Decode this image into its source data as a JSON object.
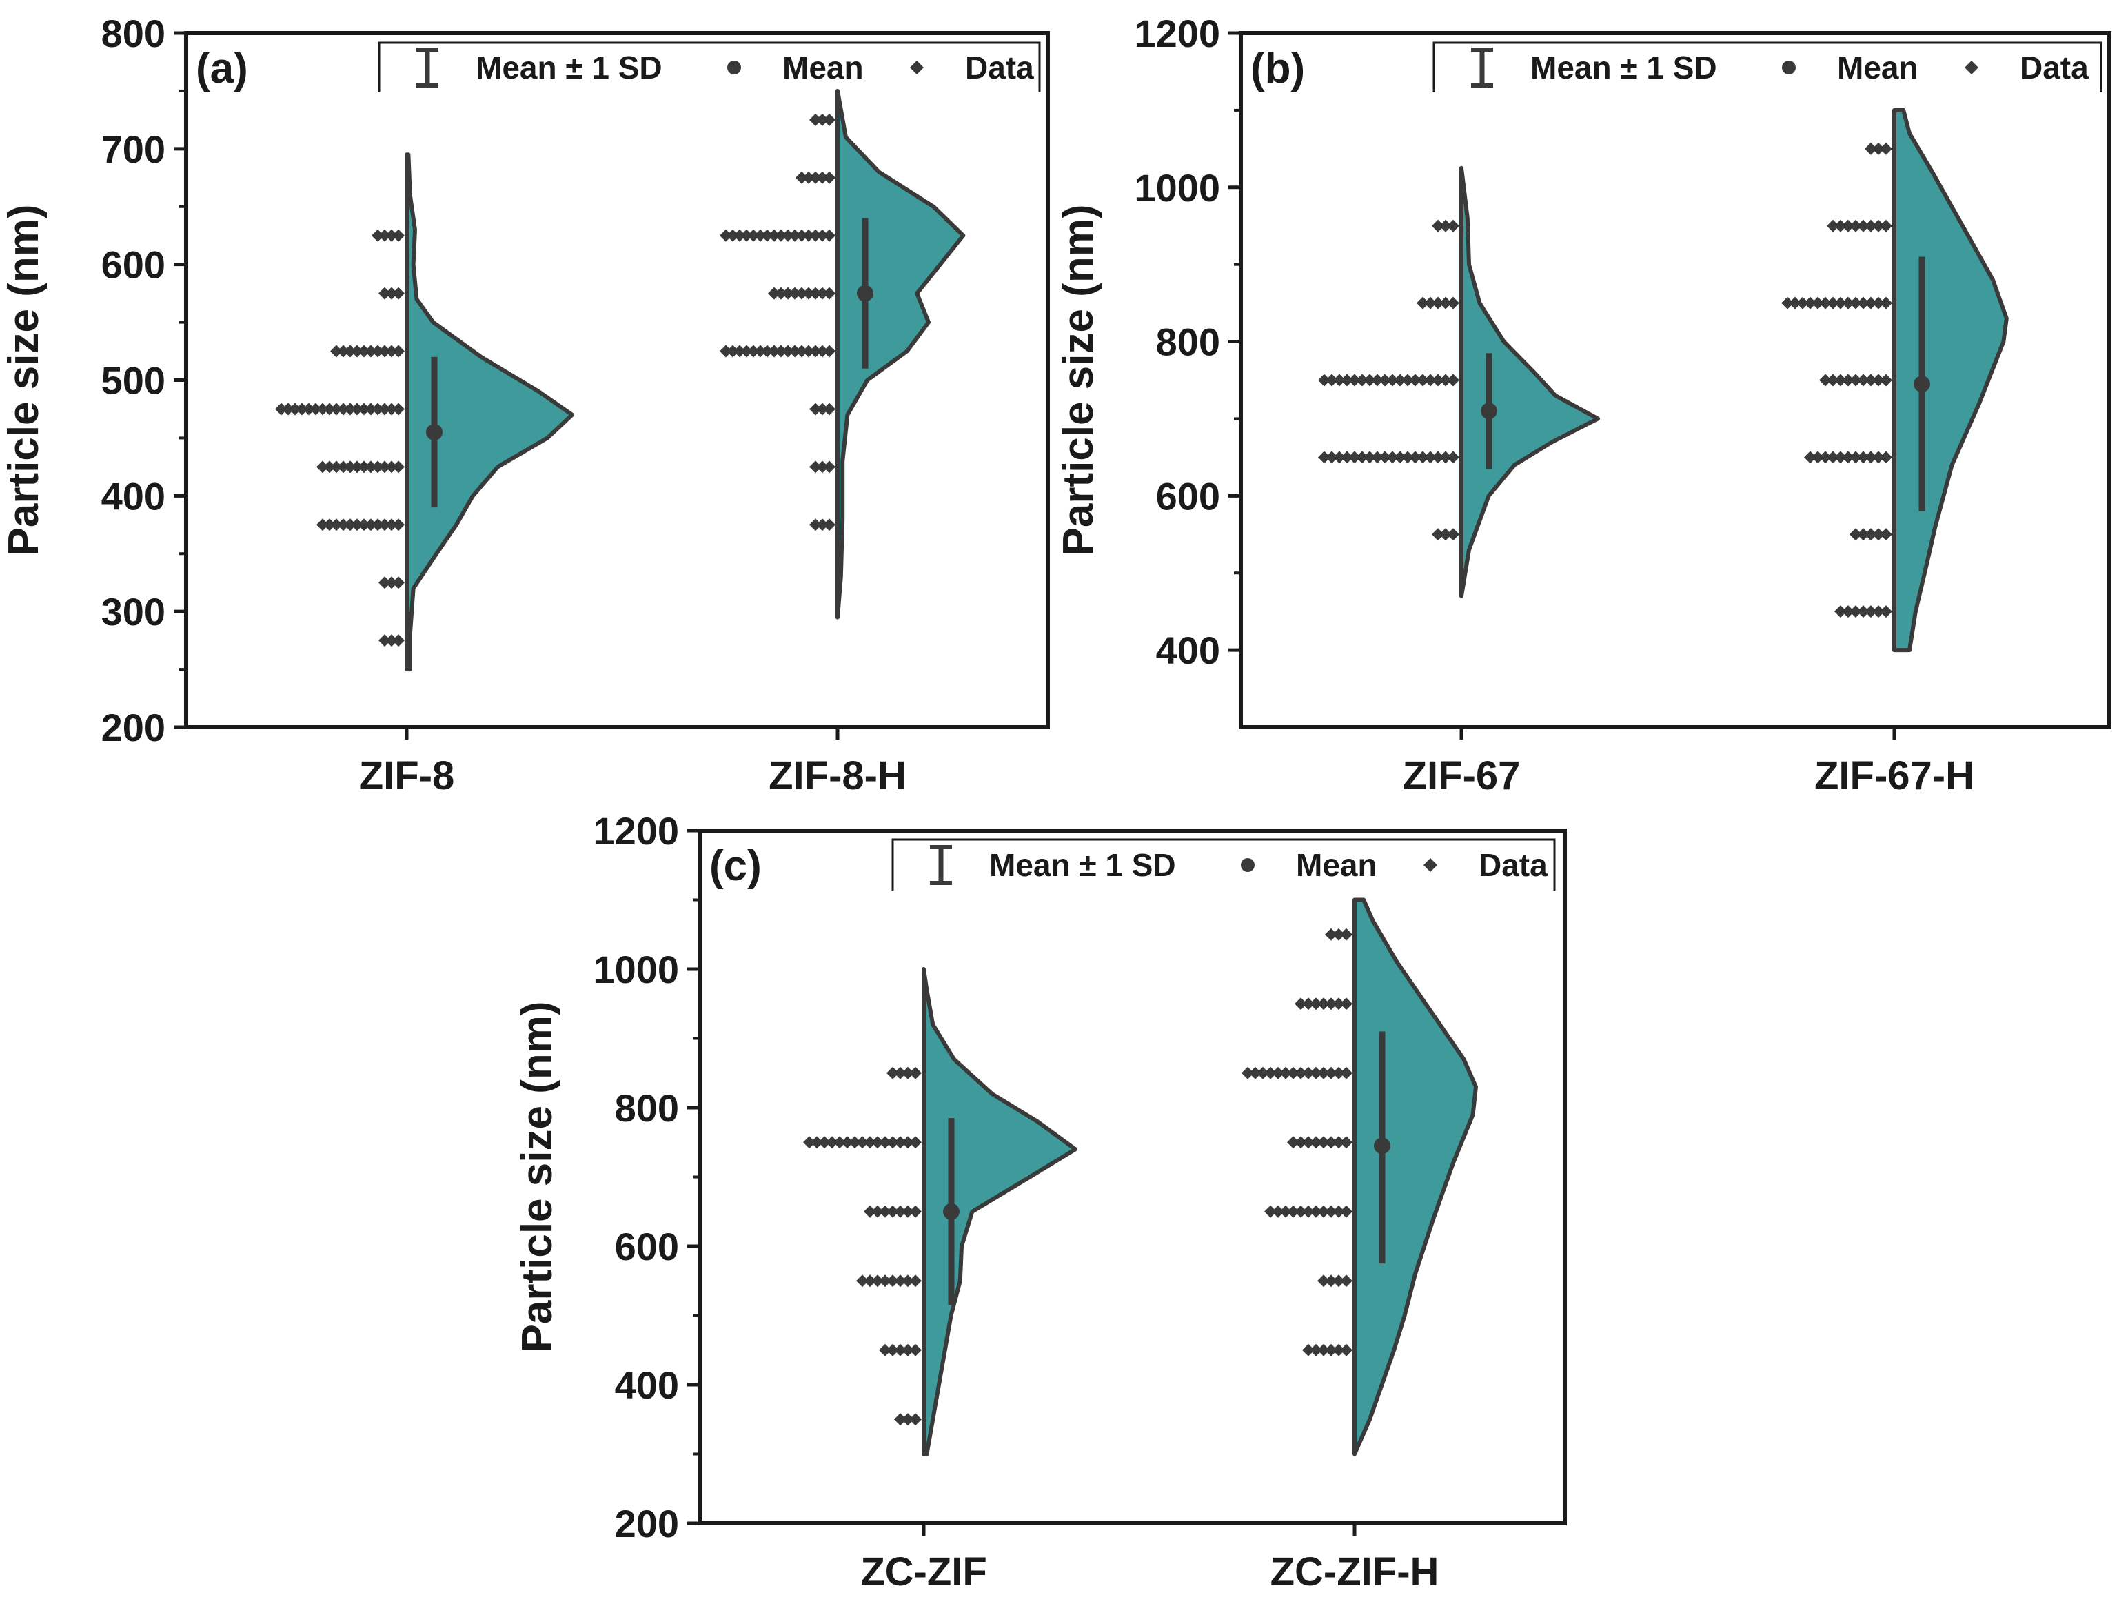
{
  "colors": {
    "violin_fill": "#3f9b9b",
    "violin_stroke": "#3a3a3a",
    "data_marker": "#3a3a3a",
    "axis": "#1a1a1a"
  },
  "legend": {
    "sd_label": "Mean ± 1 SD",
    "mean_label": "Mean",
    "data_label": "Data",
    "placement": "top-right"
  },
  "chart_data": [
    {
      "type": "violin",
      "panel_label": "(a)",
      "ylabel": "Particle size (nm)",
      "xlabel": "",
      "ylim": [
        200,
        800
      ],
      "yticks": [
        "200",
        "300",
        "400",
        "500",
        "600",
        "700",
        "800"
      ],
      "grid": false,
      "categories": [
        "ZIF-8",
        "ZIF-8-H"
      ],
      "series": [
        {
          "category": "ZIF-8",
          "mean": 455,
          "sd_low": 390,
          "sd_high": 520,
          "range": [
            250,
            695
          ],
          "density": [
            [
              250,
              0.02
            ],
            [
              280,
              0.02
            ],
            [
              320,
              0.04
            ],
            [
              350,
              0.18
            ],
            [
              375,
              0.3
            ],
            [
              400,
              0.4
            ],
            [
              425,
              0.55
            ],
            [
              450,
              0.85
            ],
            [
              470,
              1.0
            ],
            [
              490,
              0.8
            ],
            [
              520,
              0.45
            ],
            [
              550,
              0.16
            ],
            [
              570,
              0.06
            ],
            [
              600,
              0.04
            ],
            [
              630,
              0.05
            ],
            [
              660,
              0.02
            ],
            [
              695,
              0.01
            ]
          ],
          "data_bins": [
            [
              275,
              3
            ],
            [
              325,
              3
            ],
            [
              375,
              12
            ],
            [
              425,
              12
            ],
            [
              475,
              18
            ],
            [
              525,
              10
            ],
            [
              575,
              3
            ],
            [
              625,
              4
            ]
          ]
        },
        {
          "category": "ZIF-8-H",
          "mean": 575,
          "sd_low": 510,
          "sd_high": 640,
          "range": [
            295,
            750
          ],
          "density": [
            [
              295,
              0.0
            ],
            [
              330,
              0.02
            ],
            [
              380,
              0.03
            ],
            [
              430,
              0.03
            ],
            [
              470,
              0.06
            ],
            [
              500,
              0.18
            ],
            [
              525,
              0.42
            ],
            [
              550,
              0.55
            ],
            [
              575,
              0.48
            ],
            [
              600,
              0.62
            ],
            [
              625,
              0.76
            ],
            [
              650,
              0.58
            ],
            [
              680,
              0.25
            ],
            [
              710,
              0.05
            ],
            [
              750,
              0.0
            ]
          ],
          "data_bins": [
            [
              375,
              3
            ],
            [
              425,
              3
            ],
            [
              475,
              3
            ],
            [
              525,
              16
            ],
            [
              575,
              9
            ],
            [
              625,
              16
            ],
            [
              675,
              5
            ],
            [
              725,
              3
            ]
          ]
        }
      ]
    },
    {
      "type": "violin",
      "panel_label": "(b)",
      "ylabel": "Particle size (nm)",
      "xlabel": "",
      "ylim": [
        300,
        1200
      ],
      "yticks": [
        "400",
        "600",
        "800",
        "1000",
        "1200"
      ],
      "grid": false,
      "categories": [
        "ZIF-67",
        "ZIF-67-H"
      ],
      "series": [
        {
          "category": "ZIF-67",
          "mean": 710,
          "sd_low": 635,
          "sd_high": 785,
          "range": [
            470,
            1025
          ],
          "density": [
            [
              470,
              0.0
            ],
            [
              530,
              0.05
            ],
            [
              600,
              0.18
            ],
            [
              640,
              0.35
            ],
            [
              670,
              0.6
            ],
            [
              700,
              0.9
            ],
            [
              730,
              0.62
            ],
            [
              760,
              0.48
            ],
            [
              800,
              0.28
            ],
            [
              850,
              0.12
            ],
            [
              900,
              0.05
            ],
            [
              960,
              0.04
            ],
            [
              1025,
              0.0
            ]
          ],
          "data_bins": [
            [
              550,
              3
            ],
            [
              650,
              18
            ],
            [
              750,
              18
            ],
            [
              850,
              5
            ],
            [
              950,
              3
            ]
          ]
        },
        {
          "category": "ZIF-67-H",
          "mean": 745,
          "sd_low": 580,
          "sd_high": 910,
          "range": [
            400,
            1100
          ],
          "density": [
            [
              400,
              0.1
            ],
            [
              450,
              0.14
            ],
            [
              500,
              0.2
            ],
            [
              560,
              0.27
            ],
            [
              640,
              0.38
            ],
            [
              720,
              0.56
            ],
            [
              800,
              0.72
            ],
            [
              830,
              0.74
            ],
            [
              880,
              0.65
            ],
            [
              950,
              0.45
            ],
            [
              1020,
              0.25
            ],
            [
              1070,
              0.1
            ],
            [
              1100,
              0.06
            ]
          ],
          "data_bins": [
            [
              450,
              7
            ],
            [
              550,
              5
            ],
            [
              650,
              11
            ],
            [
              750,
              9
            ],
            [
              850,
              14
            ],
            [
              950,
              8
            ],
            [
              1050,
              3
            ]
          ]
        }
      ]
    },
    {
      "type": "violin",
      "panel_label": "(c)",
      "ylabel": "Particle size (nm)",
      "xlabel": "",
      "ylim": [
        200,
        1200
      ],
      "yticks": [
        "200",
        "400",
        "600",
        "800",
        "1000",
        "1200"
      ],
      "grid": false,
      "categories": [
        "ZC-ZIF",
        "ZC-ZIF-H"
      ],
      "series": [
        {
          "category": "ZC-ZIF",
          "mean": 650,
          "sd_low": 515,
          "sd_high": 785,
          "range": [
            300,
            1000
          ],
          "density": [
            [
              300,
              0.02
            ],
            [
              350,
              0.06
            ],
            [
              400,
              0.1
            ],
            [
              450,
              0.14
            ],
            [
              500,
              0.18
            ],
            [
              550,
              0.24
            ],
            [
              600,
              0.25
            ],
            [
              650,
              0.32
            ],
            [
              700,
              0.7
            ],
            [
              740,
              1.0
            ],
            [
              780,
              0.75
            ],
            [
              820,
              0.45
            ],
            [
              870,
              0.2
            ],
            [
              920,
              0.06
            ],
            [
              970,
              0.02
            ],
            [
              1000,
              0.0
            ]
          ],
          "data_bins": [
            [
              350,
              3
            ],
            [
              450,
              5
            ],
            [
              550,
              8
            ],
            [
              650,
              7
            ],
            [
              750,
              15
            ],
            [
              850,
              4
            ]
          ]
        },
        {
          "category": "ZC-ZIF-H",
          "mean": 745,
          "sd_low": 575,
          "sd_high": 910,
          "range": [
            300,
            1100
          ],
          "density": [
            [
              300,
              0.0
            ],
            [
              350,
              0.1
            ],
            [
              400,
              0.18
            ],
            [
              450,
              0.26
            ],
            [
              500,
              0.33
            ],
            [
              560,
              0.4
            ],
            [
              640,
              0.52
            ],
            [
              720,
              0.65
            ],
            [
              790,
              0.78
            ],
            [
              830,
              0.8
            ],
            [
              870,
              0.72
            ],
            [
              940,
              0.5
            ],
            [
              1010,
              0.28
            ],
            [
              1070,
              0.12
            ],
            [
              1100,
              0.06
            ]
          ],
          "data_bins": [
            [
              450,
              6
            ],
            [
              550,
              4
            ],
            [
              650,
              11
            ],
            [
              750,
              8
            ],
            [
              850,
              14
            ],
            [
              950,
              7
            ],
            [
              1050,
              3
            ]
          ]
        }
      ]
    }
  ]
}
